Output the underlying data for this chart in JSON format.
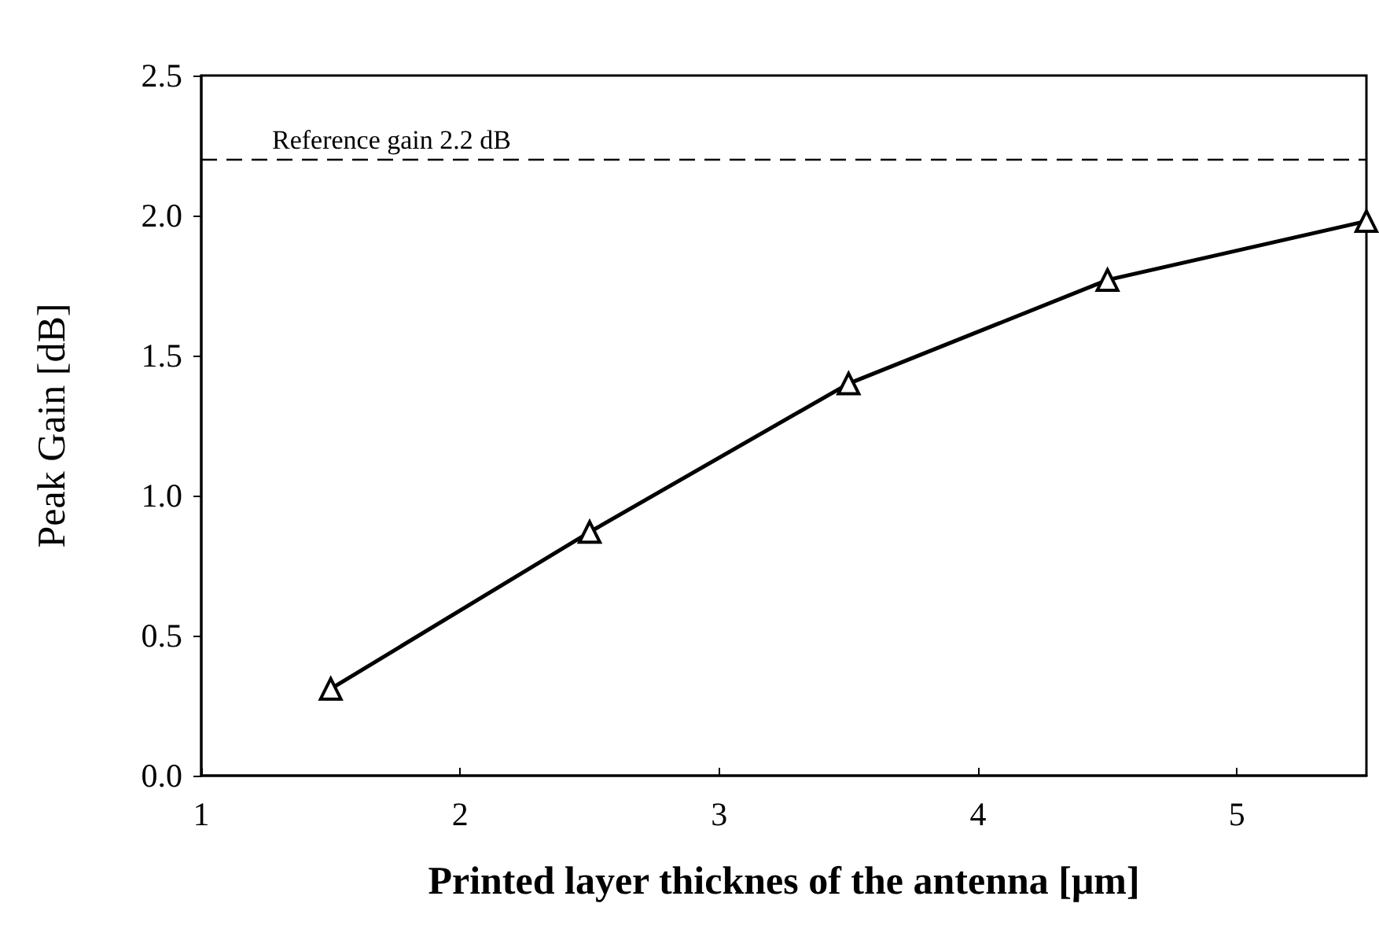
{
  "chart_data": {
    "type": "line",
    "xlabel": "Printed layer thicknes of the antenna [μm]",
    "ylabel": "Peak Gain [dB]",
    "x": [
      1.5,
      2.5,
      3.5,
      4.5,
      5.5
    ],
    "series": [
      {
        "color": "#000000",
        "values": [
          0.31,
          0.87,
          1.4,
          1.77,
          1.98
        ]
      }
    ],
    "xlim": [
      1,
      5.5
    ],
    "xticks": [
      1,
      2,
      3,
      4,
      5
    ],
    "ylim": [
      0,
      2.5
    ],
    "yticks": [
      {
        "value": 0,
        "label": "0.0"
      },
      0.5,
      {
        "value": 1,
        "label": "1.0"
      },
      1.5,
      {
        "value": 2,
        "label": "2.0"
      },
      2.5
    ],
    "ref_lines": [
      {
        "axis": "y",
        "value": 2.2,
        "label": "Reference gain 2.2 dB",
        "color": "#000000",
        "line_style": "dashed"
      }
    ],
    "marker": "triangle",
    "line_style": "solid",
    "grid": false
  }
}
